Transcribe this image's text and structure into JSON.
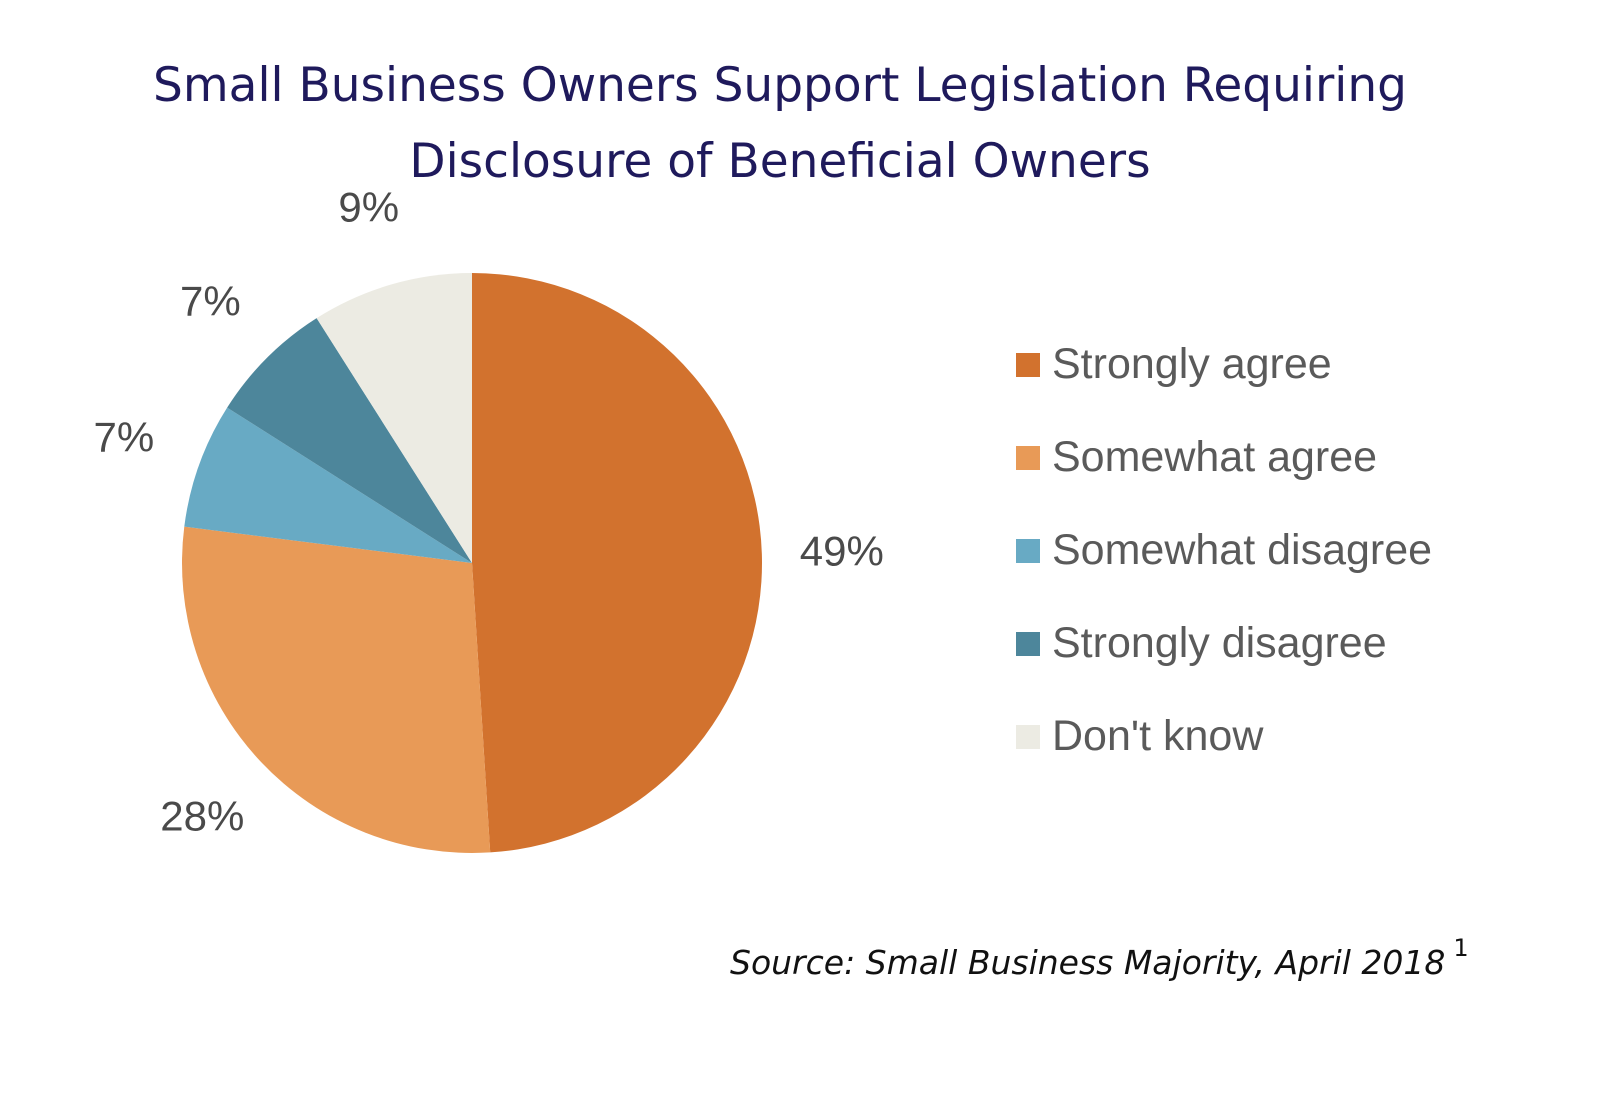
{
  "title": {
    "line1": "Small Business Owners Support Legislation Requiring",
    "line2": "Disclosure of Beneficial Owners"
  },
  "source": {
    "text": "Source: Small Business Majority, April 2018",
    "footnote": "1"
  },
  "chart_data": {
    "type": "pie",
    "categories": [
      "Strongly agree",
      "Somewhat agree",
      "Somewhat disagree",
      "Strongly disagree",
      "Don't know"
    ],
    "values": [
      49,
      28,
      7,
      7,
      9
    ],
    "data_labels": [
      "49%",
      "28%",
      "7%",
      "7%",
      "9%"
    ],
    "colors": [
      "#d2722e",
      "#e89a57",
      "#68aac4",
      "#4d869b",
      "#ecebe3"
    ],
    "legend_position": "right",
    "start": "12 o'clock",
    "direction": "clockwise"
  }
}
